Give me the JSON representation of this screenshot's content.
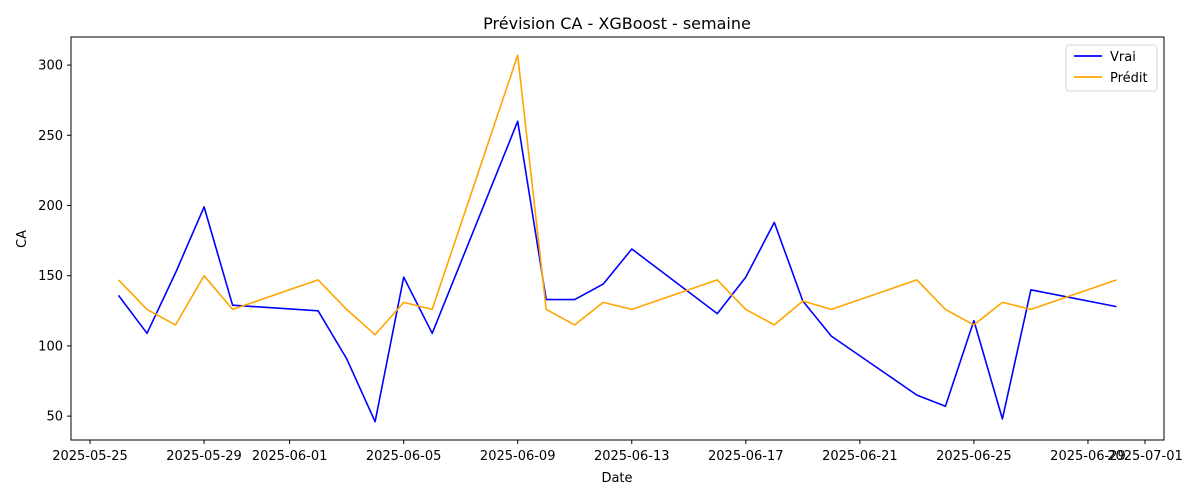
{
  "chart_data": {
    "type": "line",
    "title": "Prévision CA - XGBoost - semaine",
    "xlabel": "Date",
    "ylabel": "CA",
    "xlim": [
      "2025-05-24T08:00",
      "2025-07-01T16:00"
    ],
    "ylim": [
      33,
      320
    ],
    "x_ticks": [
      "2025-05-25",
      "2025-05-29",
      "2025-06-01",
      "2025-06-05",
      "2025-06-09",
      "2025-06-13",
      "2025-06-17",
      "2025-06-21",
      "2025-06-25",
      "2025-06-29",
      "2025-07-01"
    ],
    "y_ticks": [
      50,
      100,
      150,
      200,
      250,
      300
    ],
    "legend_position": "top-right",
    "grid": false,
    "series": [
      {
        "name": "Vrai",
        "color": "#0000ff",
        "points": [
          [
            "2025-05-26",
            136
          ],
          [
            "2025-05-27",
            109
          ],
          [
            "2025-05-28",
            152
          ],
          [
            "2025-05-29",
            199
          ],
          [
            "2025-05-30",
            129
          ],
          [
            "2025-06-02",
            125
          ],
          [
            "2025-06-03",
            91
          ],
          [
            "2025-06-04",
            46
          ],
          [
            "2025-06-05",
            149
          ],
          [
            "2025-06-06",
            109
          ],
          [
            "2025-06-09",
            260
          ],
          [
            "2025-06-10",
            133
          ],
          [
            "2025-06-11",
            133
          ],
          [
            "2025-06-12",
            144
          ],
          [
            "2025-06-13",
            169
          ],
          [
            "2025-06-16",
            123
          ],
          [
            "2025-06-17",
            149
          ],
          [
            "2025-06-18",
            188
          ],
          [
            "2025-06-19",
            132
          ],
          [
            "2025-06-20",
            107
          ],
          [
            "2025-06-23",
            65
          ],
          [
            "2025-06-24",
            57
          ],
          [
            "2025-06-25",
            118
          ],
          [
            "2025-06-26",
            48
          ],
          [
            "2025-06-27",
            140
          ],
          [
            "2025-06-30",
            128
          ]
        ]
      },
      {
        "name": "Prédit",
        "color": "#ffa500",
        "points": [
          [
            "2025-05-26",
            147
          ],
          [
            "2025-05-27",
            126
          ],
          [
            "2025-05-28",
            115
          ],
          [
            "2025-05-29",
            150
          ],
          [
            "2025-05-30",
            126
          ],
          [
            "2025-06-02",
            147
          ],
          [
            "2025-06-03",
            126
          ],
          [
            "2025-06-04",
            108
          ],
          [
            "2025-06-05",
            131
          ],
          [
            "2025-06-06",
            126
          ],
          [
            "2025-06-09",
            307
          ],
          [
            "2025-06-10",
            126
          ],
          [
            "2025-06-11",
            115
          ],
          [
            "2025-06-12",
            131
          ],
          [
            "2025-06-13",
            126
          ],
          [
            "2025-06-16",
            147
          ],
          [
            "2025-06-17",
            126
          ],
          [
            "2025-06-18",
            115
          ],
          [
            "2025-06-19",
            132
          ],
          [
            "2025-06-20",
            126
          ],
          [
            "2025-06-23",
            147
          ],
          [
            "2025-06-24",
            126
          ],
          [
            "2025-06-25",
            115
          ],
          [
            "2025-06-26",
            131
          ],
          [
            "2025-06-27",
            126
          ],
          [
            "2025-06-30",
            147
          ]
        ]
      }
    ]
  }
}
